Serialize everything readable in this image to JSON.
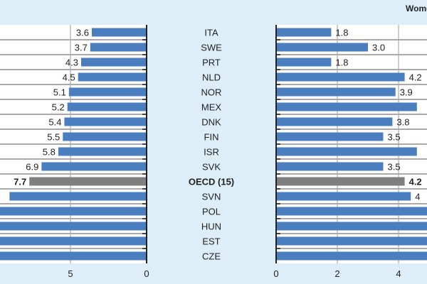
{
  "chart_data": [
    {
      "type": "bar",
      "orientation": "horizontal",
      "xaxis_reversed": true,
      "categories": [
        "ITA",
        "SWE",
        "PRT",
        "NLD",
        "NOR",
        "MEX",
        "DNK",
        "FIN",
        "ISR",
        "SVK",
        "OECD (15)",
        "SVN",
        "POL",
        "HUN",
        "EST",
        "CZE"
      ],
      "values": [
        3.6,
        3.7,
        4.3,
        4.5,
        5.1,
        5.2,
        5.4,
        5.5,
        5.8,
        6.9,
        7.7,
        9.0,
        null,
        null,
        null,
        null
      ],
      "data_labels": [
        "3.6",
        "3.7",
        "4.3",
        "4.5",
        "5.1",
        "5.2",
        "5.4",
        "5.5",
        "5.8",
        "6.9",
        "7.7",
        "",
        "",
        "",
        "",
        ""
      ],
      "highlight_category": "OECD (15)",
      "xticks": [
        "5",
        "0"
      ],
      "xlim": [
        9.6,
        0
      ],
      "grid": "vertical"
    },
    {
      "type": "bar",
      "orientation": "horizontal",
      "title": "Women",
      "categories": [
        "ITA",
        "SWE",
        "PRT",
        "NLD",
        "NOR",
        "MEX",
        "DNK",
        "FIN",
        "ISR",
        "SVK",
        "OECD (15)",
        "SVN",
        "POL",
        "HUN",
        "EST",
        "CZE"
      ],
      "values": [
        1.8,
        3.0,
        1.8,
        4.2,
        3.9,
        4.6,
        3.8,
        3.5,
        4.6,
        3.5,
        4.2,
        4.4,
        null,
        null,
        null,
        null
      ],
      "data_labels": [
        "1.8",
        "3.0",
        "1.8",
        "4.2",
        "3.9",
        "",
        "3.8",
        "3.5",
        "",
        "3.5",
        "4.2",
        "4",
        "",
        "",
        "",
        ""
      ],
      "highlight_category": "OECD (15)",
      "xticks": [
        "0",
        "2",
        "4"
      ],
      "xlim": [
        0,
        4.9
      ],
      "grid": "vertical"
    }
  ],
  "colors": {
    "bar": "#4a7ebf",
    "highlight": "#7f7f7f",
    "background": "#ddeef9",
    "plot": "#ffffff"
  }
}
